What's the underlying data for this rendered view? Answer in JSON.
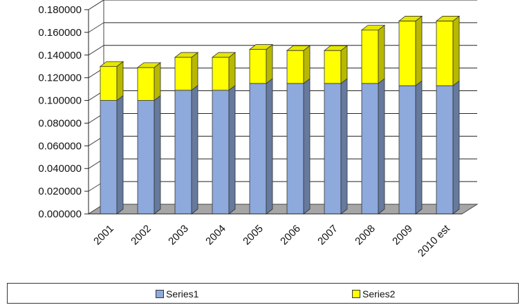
{
  "chart_data": {
    "type": "bar",
    "stacked": true,
    "three_d": true,
    "categories": [
      "2001",
      "2002",
      "2003",
      "2004",
      "2005",
      "2006",
      "2007",
      "2008",
      "2009",
      "2010 est"
    ],
    "series": [
      {
        "name": "Series1",
        "color": "#8ea9db",
        "values": [
          0.1,
          0.1,
          0.109,
          0.109,
          0.115,
          0.115,
          0.115,
          0.115,
          0.113,
          0.113
        ]
      },
      {
        "name": "Series2",
        "color": "#ffff00",
        "values": [
          0.03,
          0.029,
          0.029,
          0.029,
          0.03,
          0.029,
          0.029,
          0.047,
          0.057,
          0.057
        ]
      }
    ],
    "ylim": [
      0,
      0.18
    ],
    "yticks": [
      "0.000000",
      "0.020000",
      "0.040000",
      "0.060000",
      "0.080000",
      "0.100000",
      "0.120000",
      "0.140000",
      "0.160000",
      "0.180000"
    ],
    "grid": true,
    "legend_position": "bottom"
  }
}
